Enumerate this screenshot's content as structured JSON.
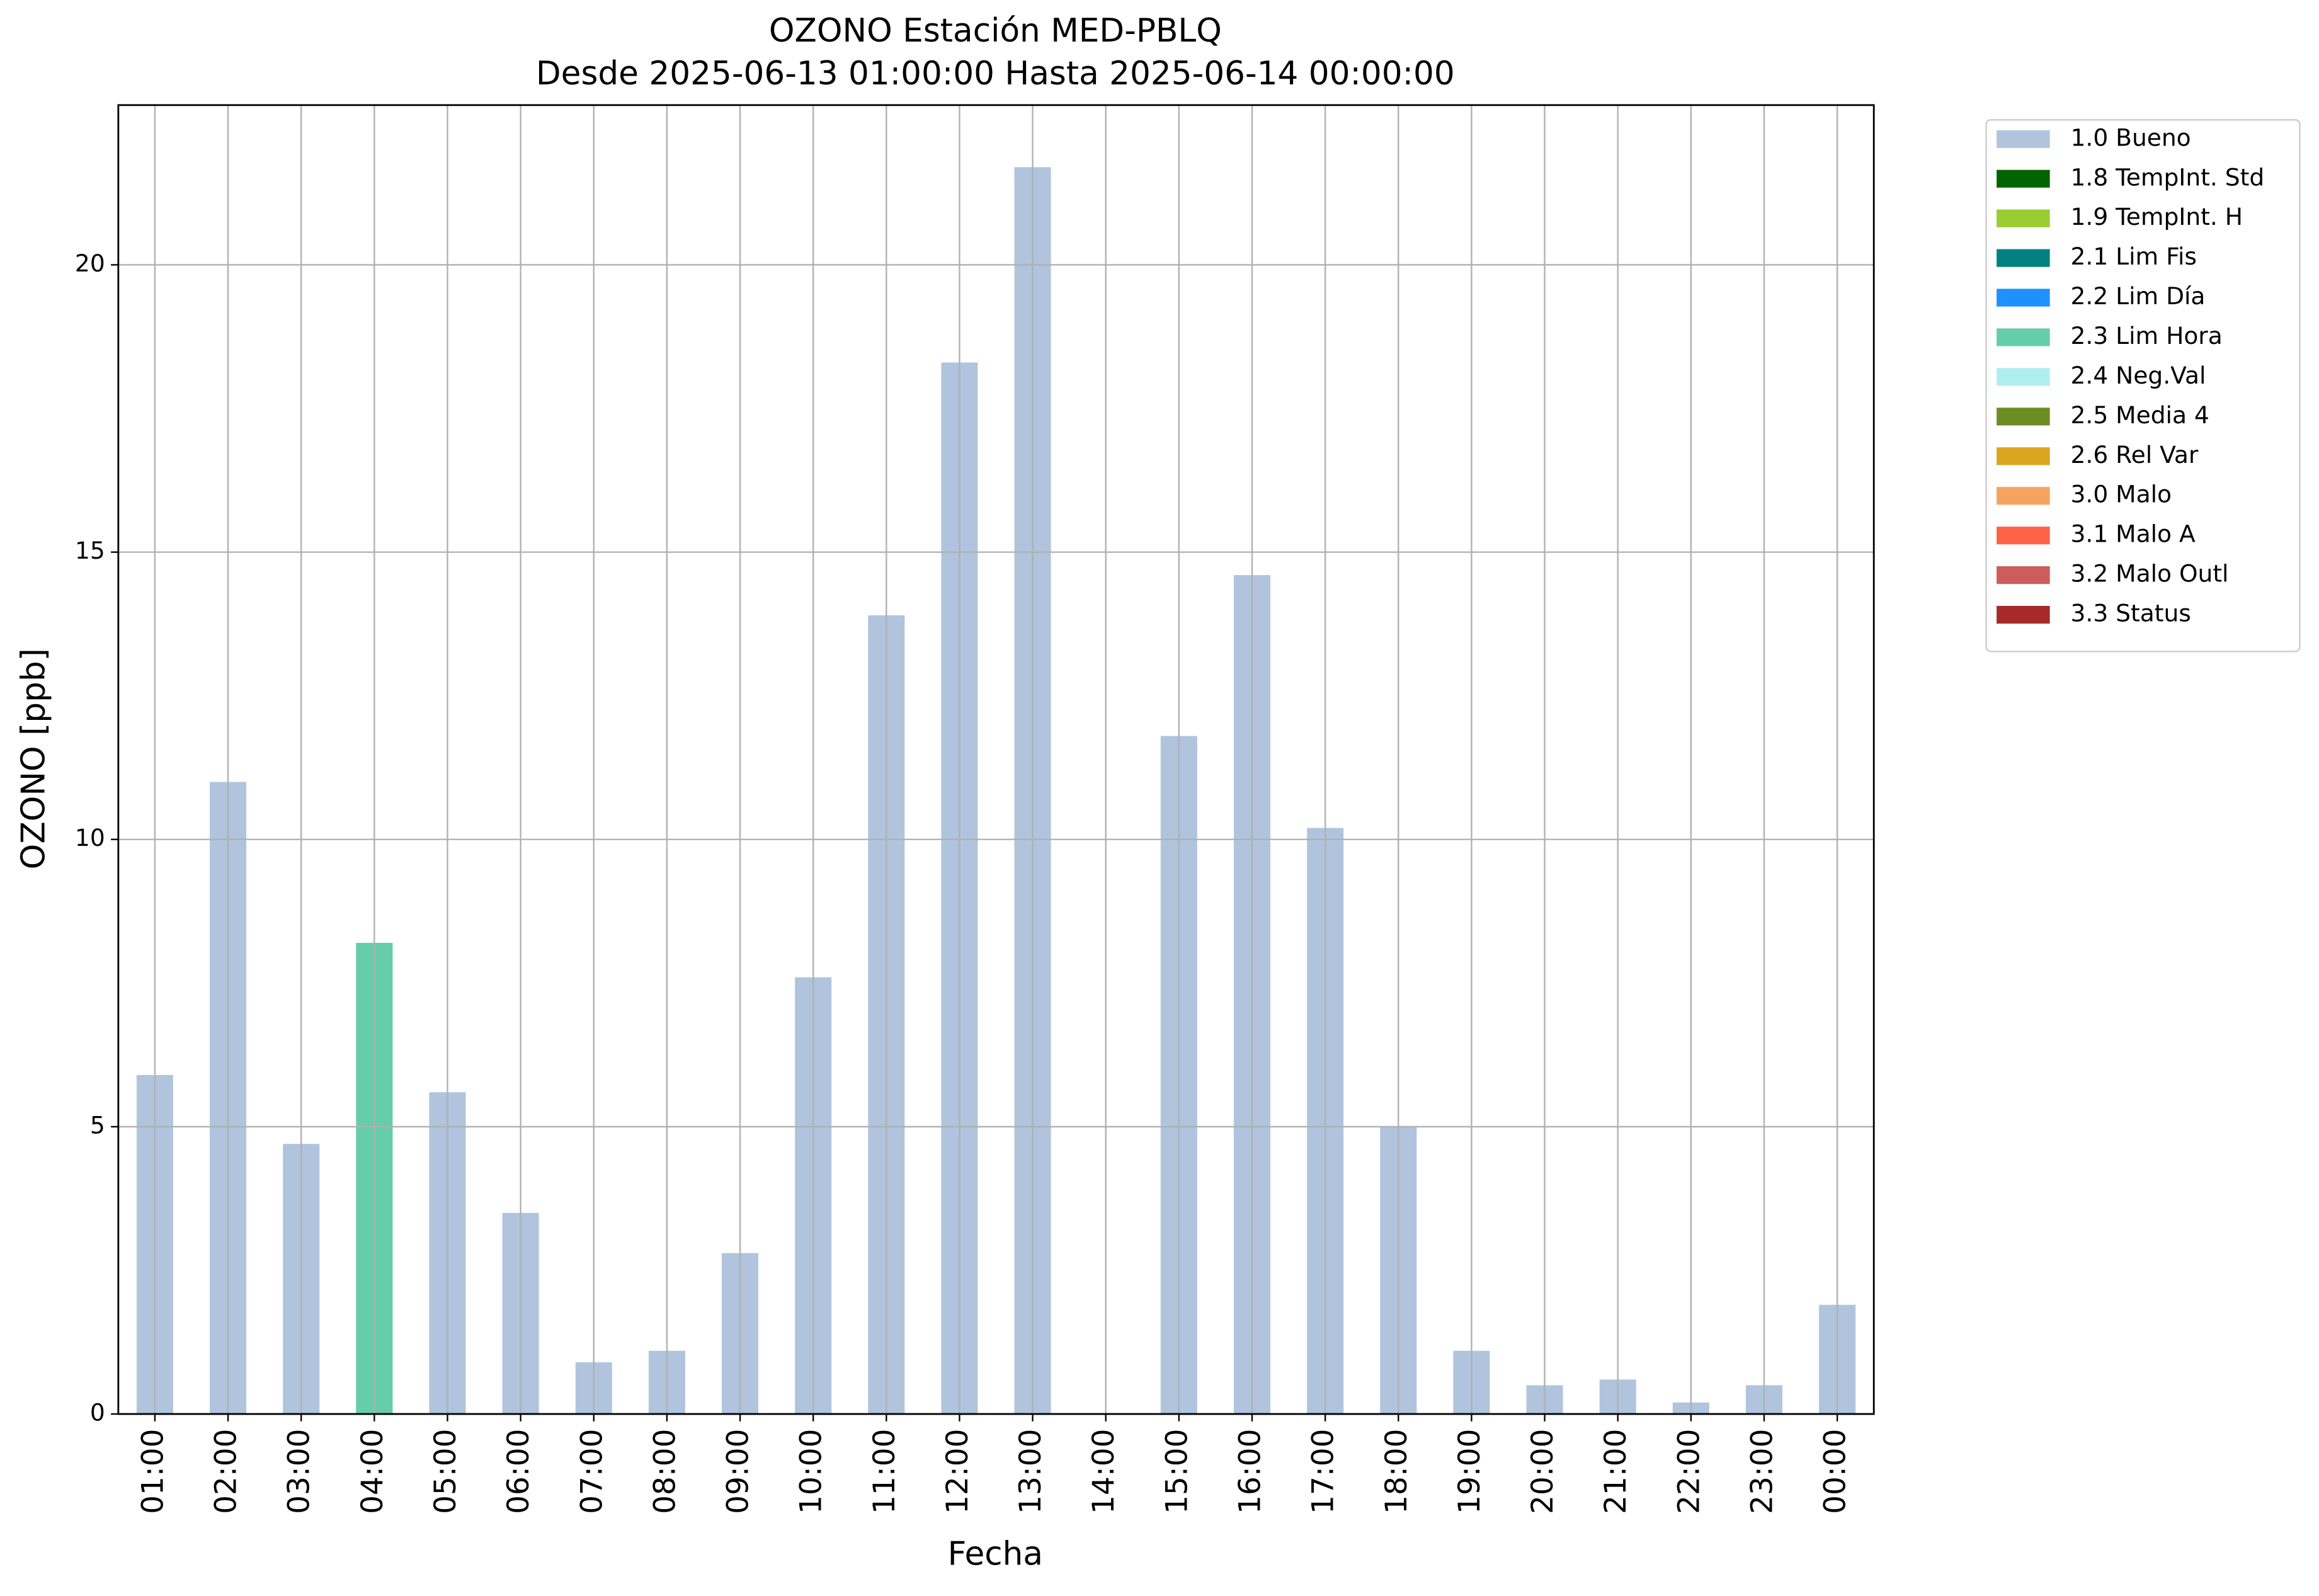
{
  "chart_data": {
    "type": "bar",
    "stacked": true,
    "title": "OZONO Estación MED-PBLQ",
    "subtitle": "Desde 2025-06-13 01:00:00 Hasta 2025-06-14 00:00:00",
    "x_label": "Fecha",
    "y_label": "OZONO [ppb]",
    "categories": [
      "01:00",
      "02:00",
      "03:00",
      "04:00",
      "05:00",
      "06:00",
      "07:00",
      "08:00",
      "09:00",
      "10:00",
      "11:00",
      "12:00",
      "13:00",
      "14:00",
      "15:00",
      "16:00",
      "17:00",
      "18:00",
      "19:00",
      "20:00",
      "21:00",
      "22:00",
      "23:00",
      "00:00"
    ],
    "series": [
      {
        "name": "1.0 Bueno",
        "color": "#b0c4de",
        "values": [
          5.9,
          11.0,
          4.7,
          null,
          5.6,
          3.5,
          0.9,
          1.1,
          2.8,
          7.6,
          13.9,
          18.3,
          21.7,
          null,
          11.8,
          14.6,
          10.2,
          5.0,
          1.1,
          0.5,
          0.6,
          0.2,
          0.5,
          1.9
        ]
      },
      {
        "name": "1.8 TempInt. Std",
        "color": "#006400",
        "values": [
          null,
          null,
          null,
          null,
          null,
          null,
          null,
          null,
          null,
          null,
          null,
          null,
          null,
          null,
          null,
          null,
          null,
          null,
          null,
          null,
          null,
          null,
          null,
          null
        ]
      },
      {
        "name": "1.9 TempInt. H",
        "color": "#9acd32",
        "values": [
          null,
          null,
          null,
          null,
          null,
          null,
          null,
          null,
          null,
          null,
          null,
          null,
          null,
          null,
          null,
          null,
          null,
          null,
          null,
          null,
          null,
          null,
          null,
          null
        ]
      },
      {
        "name": "2.1 Lim Fis",
        "color": "#008080",
        "values": [
          null,
          null,
          null,
          null,
          null,
          null,
          null,
          null,
          null,
          null,
          null,
          null,
          null,
          null,
          null,
          null,
          null,
          null,
          null,
          null,
          null,
          null,
          null,
          null
        ]
      },
      {
        "name": "2.2 Lim Día",
        "color": "#1e90ff",
        "values": [
          null,
          null,
          null,
          null,
          null,
          null,
          null,
          null,
          null,
          null,
          null,
          null,
          null,
          null,
          null,
          null,
          null,
          null,
          null,
          null,
          null,
          null,
          null,
          null
        ]
      },
      {
        "name": "2.3 Lim Hora",
        "color": "#66cdaa",
        "values": [
          null,
          null,
          null,
          8.2,
          null,
          null,
          null,
          null,
          null,
          null,
          null,
          null,
          null,
          null,
          null,
          null,
          null,
          null,
          null,
          null,
          null,
          null,
          null,
          null
        ]
      },
      {
        "name": "2.4 Neg.Val",
        "color": "#afeeee",
        "values": [
          null,
          null,
          null,
          null,
          null,
          null,
          null,
          null,
          null,
          null,
          null,
          null,
          null,
          null,
          null,
          null,
          null,
          null,
          null,
          null,
          null,
          null,
          null,
          null
        ]
      },
      {
        "name": "2.5 Media 4",
        "color": "#6b8e23",
        "values": [
          null,
          null,
          null,
          null,
          null,
          null,
          null,
          null,
          null,
          null,
          null,
          null,
          null,
          null,
          null,
          null,
          null,
          null,
          null,
          null,
          null,
          null,
          null,
          null
        ]
      },
      {
        "name": "2.6 Rel Var",
        "color": "#daa520",
        "values": [
          null,
          null,
          null,
          null,
          null,
          null,
          null,
          null,
          null,
          null,
          null,
          null,
          null,
          null,
          null,
          null,
          null,
          null,
          null,
          null,
          null,
          null,
          null,
          null
        ]
      },
      {
        "name": "3.0 Malo",
        "color": "#f4a460",
        "values": [
          null,
          null,
          null,
          null,
          null,
          null,
          null,
          null,
          null,
          null,
          null,
          null,
          null,
          null,
          null,
          null,
          null,
          null,
          null,
          null,
          null,
          null,
          null,
          null
        ]
      },
      {
        "name": "3.1 Malo A",
        "color": "#ff6347",
        "values": [
          null,
          null,
          null,
          null,
          null,
          null,
          null,
          null,
          null,
          null,
          null,
          null,
          null,
          null,
          null,
          null,
          null,
          null,
          null,
          null,
          null,
          null,
          null,
          null
        ]
      },
      {
        "name": "3.2 Malo Outl",
        "color": "#cd5c5c",
        "values": [
          null,
          null,
          null,
          null,
          null,
          null,
          null,
          null,
          null,
          null,
          null,
          null,
          null,
          null,
          null,
          null,
          null,
          null,
          null,
          null,
          null,
          null,
          null,
          null
        ]
      },
      {
        "name": "3.3 Status",
        "color": "#a52a2a",
        "values": [
          null,
          null,
          null,
          null,
          null,
          null,
          null,
          null,
          null,
          null,
          null,
          null,
          null,
          null,
          null,
          null,
          null,
          null,
          null,
          null,
          null,
          null,
          null,
          null
        ]
      }
    ],
    "ylim": [
      0,
      22.78
    ],
    "yticks": [
      0,
      5,
      10,
      15,
      20
    ],
    "grid": true,
    "legend": "outside upper right"
  }
}
